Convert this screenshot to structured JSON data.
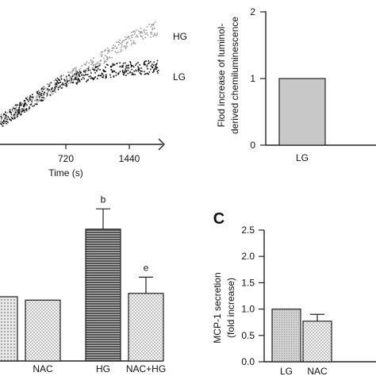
{
  "chart_data": [
    {
      "type": "scatter",
      "xlabel": "Time (s)",
      "ylabel": "",
      "x_ticks": [
        "720",
        "1440"
      ],
      "xlim": [
        0,
        1550
      ],
      "ylim": [
        0,
        2
      ],
      "series": [
        {
          "name": "HG",
          "color": "#9a9a9a",
          "x": [
            0,
            200,
            400,
            600,
            800,
            900,
            1000,
            1100,
            1200,
            1300,
            1400,
            1500
          ],
          "y": [
            0.35,
            0.55,
            0.75,
            0.95,
            1.1,
            1.2,
            1.32,
            1.42,
            1.52,
            1.6,
            1.67,
            1.72
          ]
        },
        {
          "name": "LG",
          "color": "#111111",
          "x": [
            0,
            200,
            400,
            600,
            800,
            900,
            1000,
            1100,
            1200,
            1300,
            1400,
            1500
          ],
          "y": [
            0.35,
            0.55,
            0.75,
            0.95,
            1.02,
            1.06,
            1.08,
            1.1,
            1.12,
            1.13,
            1.14,
            1.15
          ]
        }
      ]
    },
    {
      "type": "bar",
      "ylabel": "Flod increase of luminol-derived chemiluminescence",
      "categories": [
        "LG"
      ],
      "values": [
        1
      ],
      "y_ticks": [
        "0",
        "1",
        "2"
      ],
      "ylim": [
        0,
        2
      ],
      "bar_color": "#c8c8c8"
    },
    {
      "type": "bar",
      "categories": [
        "",
        "NAC",
        "HG",
        "NAC+HG"
      ],
      "values": [
        0.95,
        0.9,
        1.95,
        1.0
      ],
      "errors": [
        0,
        0,
        0.3,
        0.24
      ],
      "annotations": [
        "",
        "",
        "b",
        "e"
      ],
      "ylim": [
        0,
        2.5
      ]
    },
    {
      "type": "bar",
      "panel_letter": "C",
      "ylabel": "MCP-1 secretion (fold increase)",
      "categories": [
        "LG",
        "NAC"
      ],
      "values": [
        1.0,
        0.77
      ],
      "errors": [
        0,
        0.13
      ],
      "y_ticks": [
        "0.0",
        "0.5",
        "1.0",
        "1.5",
        "2.0",
        "2.5"
      ],
      "ylim": [
        0,
        2.5
      ]
    }
  ]
}
